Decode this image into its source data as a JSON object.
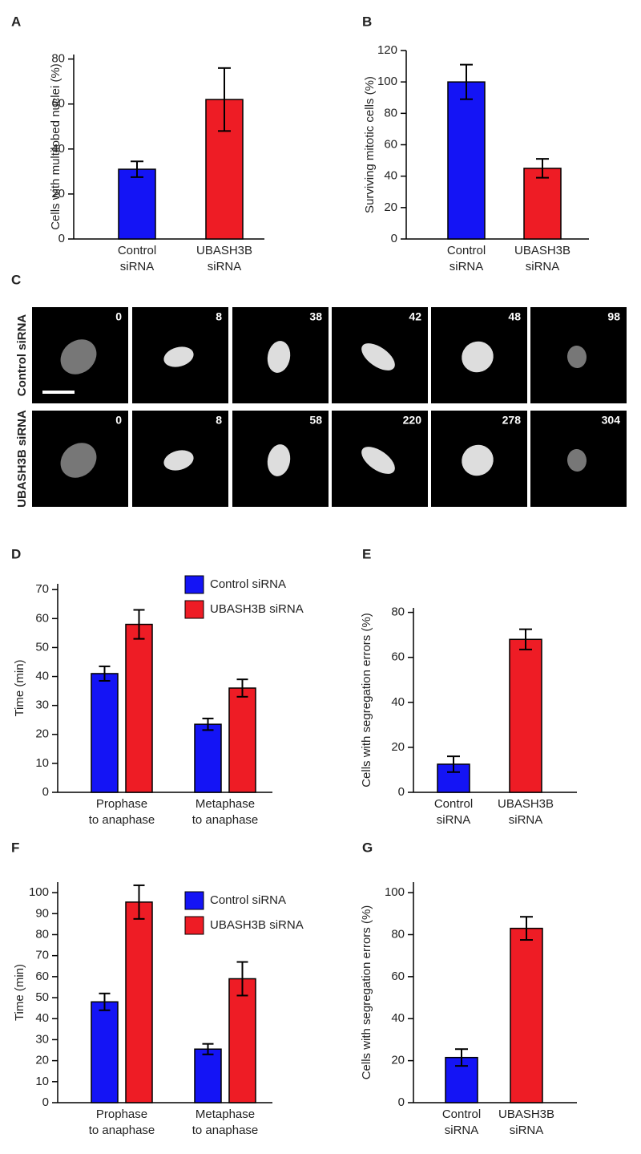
{
  "chart_data": [
    {
      "type": "bar",
      "panel": "A",
      "ylabel": "Cells with multilobed nuclei (%)",
      "categories": [
        "Control siRNA",
        "UBASH3B siRNA"
      ],
      "values": [
        31,
        62
      ],
      "errors": [
        3.5,
        14
      ],
      "colors": [
        "#1414f5",
        "#ee1c25"
      ],
      "ylim": [
        0,
        82
      ],
      "yticks": [
        0,
        20,
        40,
        60,
        80
      ]
    },
    {
      "type": "bar",
      "panel": "B",
      "ylabel": "Surviving mitotic cells (%)",
      "categories": [
        "Control siRNA",
        "UBASH3B siRNA"
      ],
      "values": [
        100,
        45
      ],
      "errors": [
        11,
        6
      ],
      "colors": [
        "#1414f5",
        "#ee1c25"
      ],
      "ylim": [
        0,
        120
      ],
      "yticks": [
        0,
        20,
        40,
        60,
        80,
        100,
        120
      ]
    },
    {
      "type": "grouped-bar",
      "panel": "D",
      "ylabel": "Time (min)",
      "categories": [
        "Prophase to anaphase",
        "Metaphase to anaphase"
      ],
      "series": [
        {
          "name": "Control siRNA",
          "color": "#1414f5",
          "values": [
            41,
            23.5
          ],
          "errors": [
            2.5,
            2
          ]
        },
        {
          "name": "UBASH3B siRNA",
          "color": "#ee1c25",
          "values": [
            58,
            36
          ],
          "errors": [
            5,
            3
          ]
        }
      ],
      "ylim": [
        0,
        72
      ],
      "yticks": [
        0,
        10,
        20,
        30,
        40,
        50,
        60,
        70
      ]
    },
    {
      "type": "bar",
      "panel": "E",
      "ylabel": "Cells with segregation errors (%)",
      "categories": [
        "Control siRNA",
        "UBASH3B siRNA"
      ],
      "values": [
        12.5,
        68
      ],
      "errors": [
        3.5,
        4.5
      ],
      "colors": [
        "#1414f5",
        "#ee1c25"
      ],
      "ylim": [
        0,
        82
      ],
      "yticks": [
        0,
        20,
        40,
        60,
        80
      ]
    },
    {
      "type": "grouped-bar",
      "panel": "F",
      "ylabel": "Time (min)",
      "categories": [
        "Prophase to anaphase",
        "Metaphase to anaphase"
      ],
      "series": [
        {
          "name": "Control siRNA",
          "color": "#1414f5",
          "values": [
            48,
            25.5
          ],
          "errors": [
            4,
            2.5
          ]
        },
        {
          "name": "UBASH3B siRNA",
          "color": "#ee1c25",
          "values": [
            95.5,
            59
          ],
          "errors": [
            8,
            8
          ]
        }
      ],
      "ylim": [
        0,
        105
      ],
      "yticks": [
        0,
        10,
        20,
        30,
        40,
        50,
        60,
        70,
        80,
        90,
        100
      ]
    },
    {
      "type": "bar",
      "panel": "G",
      "ylabel": "Cells with segregation errors (%)",
      "categories": [
        "Control siRNA",
        "UBASH3B siRNA"
      ],
      "values": [
        21.5,
        83
      ],
      "errors": [
        4,
        5.5
      ],
      "colors": [
        "#1414f5",
        "#ee1c25"
      ],
      "ylim": [
        0,
        105
      ],
      "yticks": [
        0,
        20,
        40,
        60,
        80,
        100
      ]
    }
  ],
  "panel_c": {
    "label": "C",
    "rows": [
      {
        "label": "Control siRNA",
        "times": [
          0,
          8,
          38,
          42,
          48,
          98
        ]
      },
      {
        "label": "UBASH3B siRNA",
        "times": [
          0,
          8,
          58,
          220,
          278,
          304
        ]
      }
    ]
  }
}
